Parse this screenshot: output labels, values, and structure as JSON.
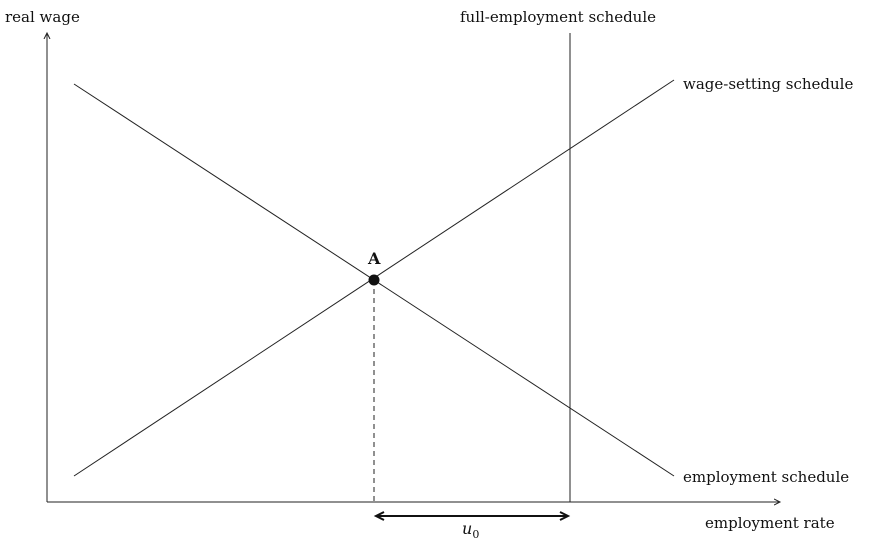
{
  "axes": {
    "y_label": "real wage",
    "x_label": "employment rate"
  },
  "curves": {
    "full_employment": "full-employment schedule",
    "wage_setting": "wage-setting schedule",
    "employment": "employment schedule"
  },
  "point": {
    "label": "A"
  },
  "unemployment_gap": {
    "symbol": "u",
    "subscript": "0"
  },
  "colors": {
    "ink": "#222222",
    "background": "#ffffff"
  }
}
